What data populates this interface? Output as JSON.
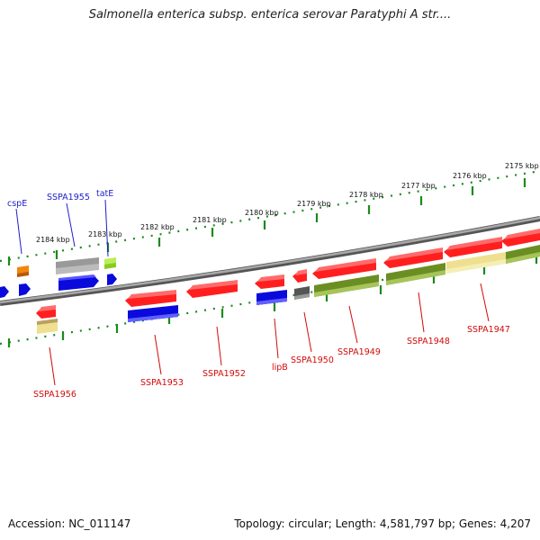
{
  "header": {
    "title": "Salmonella enterica subsp. enterica serovar Paratyphi A str...."
  },
  "footer": {
    "accession": "Accession: NC_011147",
    "topology": "Topology: circular; Length: 4,581,797 bp; Genes: 4,207"
  },
  "colors": {
    "red": "#ff1f1f",
    "blue": "#0a0adc",
    "olive": "#6b8e23",
    "grey": "#bbbbbb",
    "dark_grey": "#555555",
    "orange": "#e8760a",
    "lime": "#99dd22",
    "khaki": "#eee090",
    "backbone": "#7a7a7a",
    "scale_ticks": "#1a8a1a",
    "label_top": "#1d1dc8",
    "label_bottom": "#d20a0a"
  },
  "scale": {
    "ticks": [
      {
        "label": "2175 kbp"
      },
      {
        "label": "2176 kbp"
      },
      {
        "label": "2177 kbp"
      },
      {
        "label": "2178 kbp"
      },
      {
        "label": "2179 kbp"
      },
      {
        "label": "2180 kbp"
      },
      {
        "label": "2181 kbp"
      },
      {
        "label": "2182 kbp"
      },
      {
        "label": "2183 kbp"
      },
      {
        "label": "2184 kbp"
      }
    ]
  },
  "genes_top": [
    {
      "name": "cspE"
    },
    {
      "name": "SSPA1955"
    },
    {
      "name": "tatE"
    }
  ],
  "genes_bottom": [
    {
      "name": "SSPA1956"
    },
    {
      "name": "SSPA1953"
    },
    {
      "name": "SSPA1952"
    },
    {
      "name": "lipB"
    },
    {
      "name": "SSPA1950"
    },
    {
      "name": "SSPA1949"
    },
    {
      "name": "SSPA1948"
    },
    {
      "name": "SSPA1947"
    }
  ]
}
